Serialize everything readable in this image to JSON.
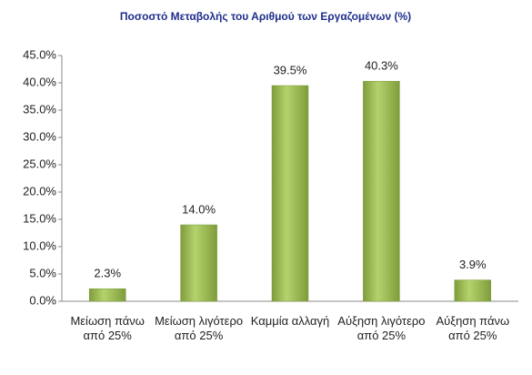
{
  "chart_data": {
    "type": "bar",
    "title": "Ποσοστό Μεταβολής του Αριθμού των Εργαζομένων (%)",
    "categories": [
      "Μείωση πάνω από 25%",
      "Μείωση λιγότερο από 25%",
      "Καμμία αλλαγή",
      "Αύξηση λιγότερο από 25%",
      "Αύξηση πάνω από 25%"
    ],
    "values": [
      2.3,
      14.0,
      39.5,
      40.3,
      3.9
    ],
    "value_labels": [
      "2.3%",
      "14.0%",
      "39.5%",
      "40.3%",
      "3.9%"
    ],
    "color": "#9bbb59",
    "ylim": [
      0,
      45
    ],
    "yticks": [
      {
        "value": 0,
        "label": "0.0%"
      },
      {
        "value": 5,
        "label": "5.0%"
      },
      {
        "value": 10,
        "label": "10.0%"
      },
      {
        "value": 15,
        "label": "15.0%"
      },
      {
        "value": 20,
        "label": "20.0%"
      },
      {
        "value": 25,
        "label": "25.0%"
      },
      {
        "value": 30,
        "label": "30.0%"
      },
      {
        "value": 35,
        "label": "35.0%"
      },
      {
        "value": 40,
        "label": "40.0%"
      },
      {
        "value": 45,
        "label": "45.0%"
      }
    ],
    "grid": false
  }
}
